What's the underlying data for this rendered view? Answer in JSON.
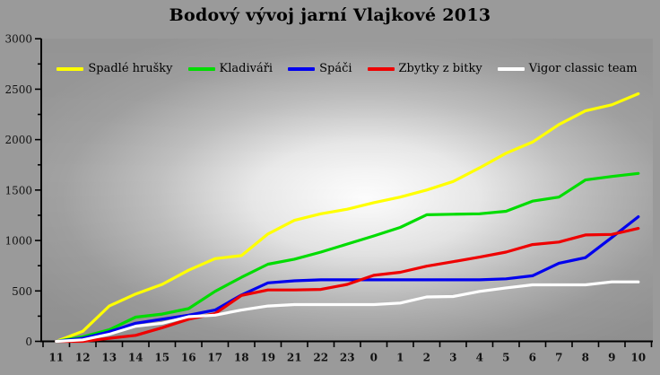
{
  "chart_data": {
    "type": "line",
    "title": "Bodový vývoj jarní Vlajkové 2013",
    "xlabel": "",
    "ylabel": "",
    "ylim": [
      0,
      3000
    ],
    "y_tick_step": 500,
    "y_minor_tick_step": 250,
    "grid": false,
    "legend_position": "top-center-inside",
    "categories": [
      "11",
      "12",
      "13",
      "14",
      "15",
      "16",
      "17",
      "18",
      "19",
      "21",
      "22",
      "23",
      "0",
      "1",
      "2",
      "3",
      "4",
      "5",
      "6",
      "7",
      "8",
      "9",
      "10"
    ],
    "series": [
      {
        "name": "Spadlé hrušky",
        "color": "#FFFF00",
        "values": [
          0,
          100,
          350,
          470,
          565,
          705,
          820,
          850,
          1065,
          1200,
          1265,
          1310,
          1375,
          1430,
          1500,
          1585,
          1720,
          1865,
          1975,
          2150,
          2285,
          2345,
          2455
        ]
      },
      {
        "name": "Kladiváři",
        "color": "#00DC00",
        "values": [
          0,
          45,
          115,
          240,
          270,
          325,
          495,
          635,
          765,
          815,
          885,
          965,
          1045,
          1130,
          1255,
          1260,
          1265,
          1290,
          1390,
          1430,
          1600,
          1635,
          1665
        ]
      },
      {
        "name": "Spáči",
        "color": "#0000EE",
        "values": [
          0,
          30,
          95,
          180,
          220,
          260,
          310,
          460,
          580,
          600,
          610,
          610,
          610,
          610,
          610,
          610,
          610,
          620,
          650,
          775,
          830,
          1030,
          1235
        ]
      },
      {
        "name": "Zbytky z bitky",
        "color": "#EE0000",
        "values": [
          0,
          0,
          30,
          60,
          135,
          220,
          275,
          455,
          510,
          510,
          515,
          565,
          655,
          685,
          745,
          790,
          835,
          885,
          960,
          985,
          1055,
          1060,
          1120
        ]
      },
      {
        "name": "Vigor classic team",
        "color": "#FFFFFF",
        "values": [
          0,
          15,
          70,
          150,
          180,
          245,
          260,
          310,
          350,
          365,
          365,
          365,
          365,
          380,
          440,
          445,
          495,
          530,
          560,
          560,
          560,
          590,
          590
        ]
      }
    ],
    "y_tick_labels": [
      "0",
      "500",
      "1000",
      "1500",
      "2000",
      "2500",
      "3000"
    ]
  },
  "colors": {
    "background": "#9A9A9A",
    "glow": "#FFFFFF",
    "axis": "#000000",
    "text": "#000000"
  }
}
